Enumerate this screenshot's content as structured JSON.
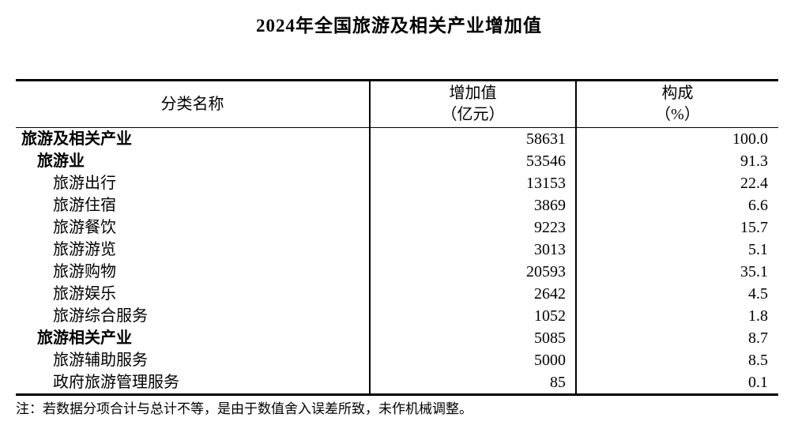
{
  "title": "2024年全国旅游及相关产业增加值",
  "colors": {
    "text": "#000000",
    "background": "#ffffff",
    "rule": "#000000"
  },
  "table": {
    "headers": {
      "category": "分类名称",
      "value_line1": "增加值",
      "value_line2": "（亿元）",
      "share_line1": "构成",
      "share_line2": "（%）"
    },
    "rows": [
      {
        "name": "旅游及相关产业",
        "indent": 0,
        "bold": true,
        "value": "58631",
        "share": "100.0"
      },
      {
        "name": "旅游业",
        "indent": 1,
        "bold": true,
        "value": "53546",
        "share": "91.3"
      },
      {
        "name": "旅游出行",
        "indent": 2,
        "bold": false,
        "value": "13153",
        "share": "22.4"
      },
      {
        "name": "旅游住宿",
        "indent": 2,
        "bold": false,
        "value": "3869",
        "share": "6.6"
      },
      {
        "name": "旅游餐饮",
        "indent": 2,
        "bold": false,
        "value": "9223",
        "share": "15.7"
      },
      {
        "name": "旅游游览",
        "indent": 2,
        "bold": false,
        "value": "3013",
        "share": "5.1"
      },
      {
        "name": "旅游购物",
        "indent": 2,
        "bold": false,
        "value": "20593",
        "share": "35.1"
      },
      {
        "name": "旅游娱乐",
        "indent": 2,
        "bold": false,
        "value": "2642",
        "share": "4.5"
      },
      {
        "name": "旅游综合服务",
        "indent": 2,
        "bold": false,
        "value": "1052",
        "share": "1.8"
      },
      {
        "name": "旅游相关产业",
        "indent": 1,
        "bold": true,
        "value": "5085",
        "share": "8.7"
      },
      {
        "name": "旅游辅助服务",
        "indent": 2,
        "bold": false,
        "value": "5000",
        "share": "8.5"
      },
      {
        "name": "政府旅游管理服务",
        "indent": 2,
        "bold": false,
        "value": "85",
        "share": "0.1"
      }
    ]
  },
  "note": "注：若数据分项合计与总计不等，是由于数值舍入误差所致，未作机械调整。"
}
